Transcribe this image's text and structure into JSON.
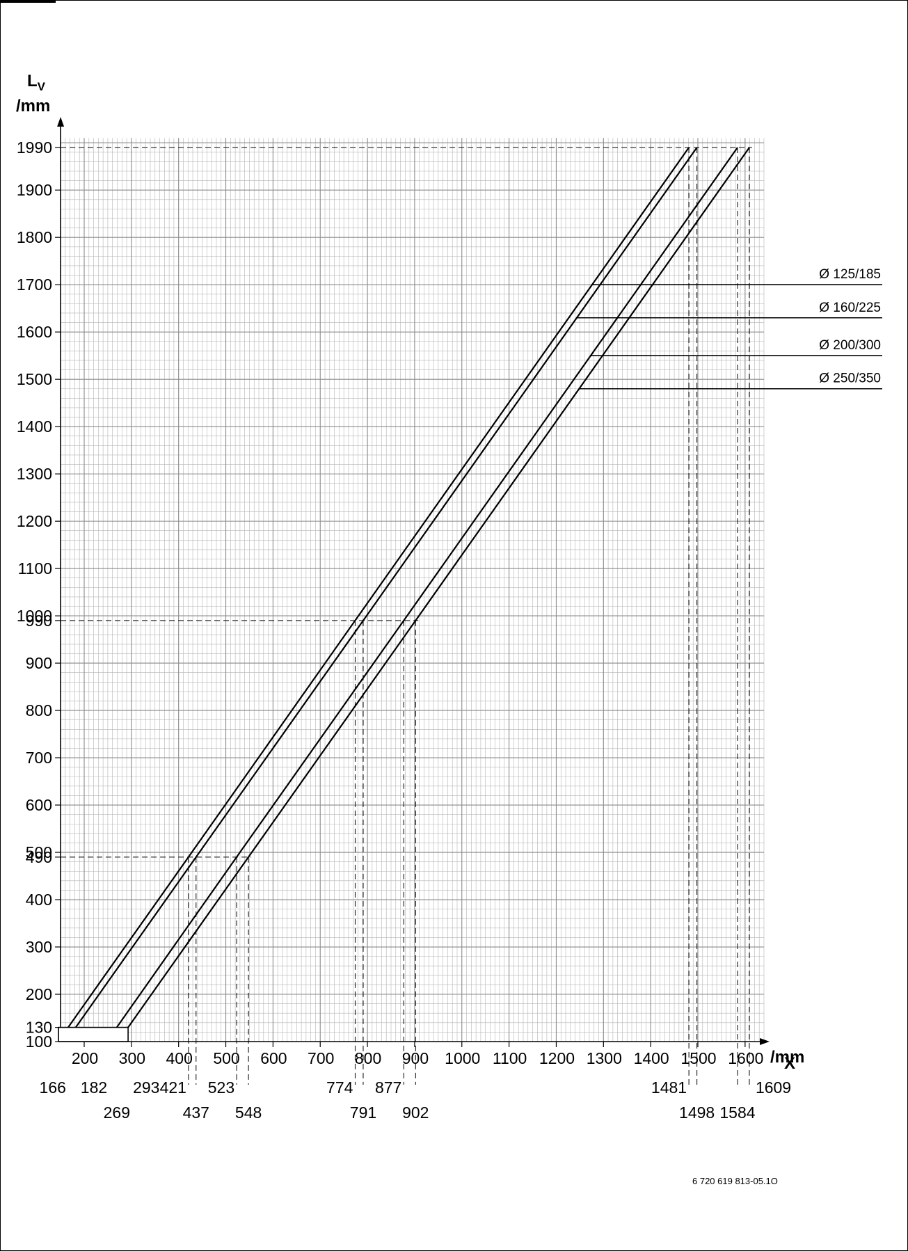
{
  "chart_data": {
    "type": "line",
    "title": "",
    "xlabel": "X\n/mm",
    "ylabel": "LV\n/mm",
    "ylabel_main": "L",
    "ylabel_sub": "V",
    "ylabel_unit": "/mm",
    "xlabel_main": "X",
    "xlabel_unit": "/mm",
    "xlim": [
      150,
      1650
    ],
    "ylim": [
      100,
      2010
    ],
    "grid": true,
    "x_ticks": [
      200,
      300,
      400,
      500,
      600,
      700,
      800,
      900,
      1000,
      1100,
      1200,
      1300,
      1400,
      1500,
      1600
    ],
    "y_ticks": [
      100,
      130,
      200,
      300,
      400,
      490,
      500,
      600,
      700,
      800,
      900,
      990,
      1000,
      1100,
      1200,
      1300,
      1400,
      1500,
      1600,
      1700,
      1800,
      1900,
      1990
    ],
    "y_tick_labels": [
      "100",
      "130",
      "200",
      "300",
      "400",
      "490",
      "500",
      "600",
      "700",
      "800",
      "900",
      "990",
      "1000",
      "1100",
      "1200",
      "1300",
      "1400",
      "1500",
      "1600",
      "1700",
      "1800",
      "1900",
      "1990"
    ],
    "series": [
      {
        "name": "Ø 125/185",
        "x": [
          166,
          421,
          774,
          1481
        ],
        "y": [
          130,
          490,
          990,
          1990
        ]
      },
      {
        "name": "Ø 160/225",
        "x": [
          182,
          437,
          791,
          1498
        ],
        "y": [
          130,
          490,
          990,
          1990
        ]
      },
      {
        "name": "Ø 200/300",
        "x": [
          269,
          523,
          877,
          1584
        ],
        "y": [
          130,
          490,
          990,
          1990
        ]
      },
      {
        "name": "Ø 250/350",
        "x": [
          293,
          548,
          902,
          1609
        ],
        "y": [
          130,
          490,
          990,
          1990
        ]
      }
    ],
    "reference_lines_y": [
      490,
      990,
      1990
    ],
    "reference_values_x_row1": [
      "166",
      "182",
      "293",
      "421",
      "523",
      "774",
      "877",
      "1481",
      "1609"
    ],
    "reference_values_x_row2": [
      "269",
      "437",
      "548",
      "791",
      "902",
      "1498",
      "1584"
    ],
    "reference_values_x_row1_pos": [
      166,
      182,
      293,
      421,
      523,
      774,
      877,
      1481,
      1609
    ],
    "reference_values_x_row2_pos": [
      269,
      437,
      548,
      791,
      902,
      1498,
      1584
    ],
    "base_box": {
      "x": [
        150,
        293
      ],
      "y": [
        100,
        130
      ]
    }
  },
  "doc_code": "6 720 619 813-05.1O"
}
